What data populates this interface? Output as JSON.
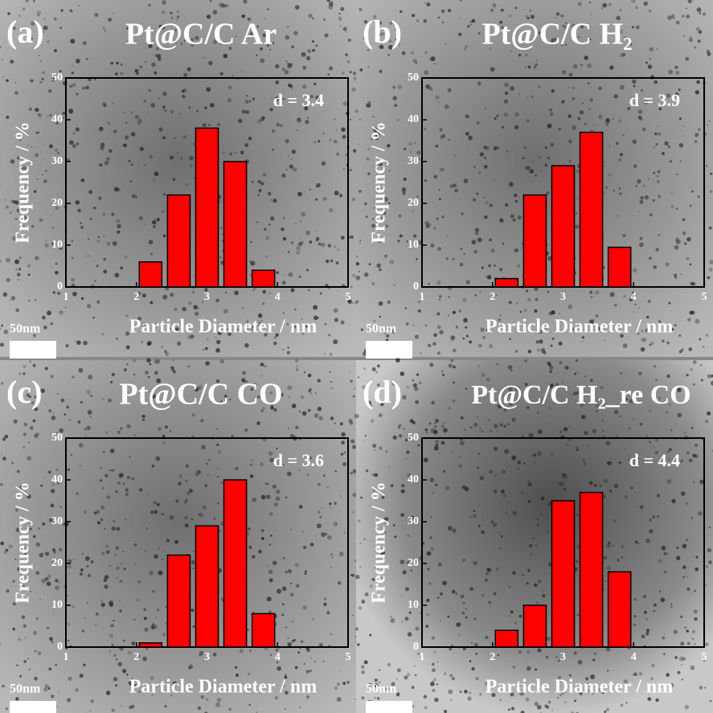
{
  "chart_data": [
    {
      "type": "bar",
      "panel_label": "(a)",
      "title": "Pt@C/C Ar",
      "annotation": "d = 3.4",
      "scale_bar": "50nm",
      "xlabel": "Particle Diameter / nm",
      "ylabel": "Frequency / %",
      "x": [
        2.2,
        2.6,
        3.0,
        3.4,
        3.8
      ],
      "values": [
        6,
        22,
        38,
        30,
        4
      ],
      "color": "#ff0000",
      "xlim": [
        1,
        5
      ],
      "ylim": [
        0,
        50
      ],
      "xticks": [
        1,
        2,
        3,
        4,
        5
      ],
      "yticks": [
        0,
        10,
        20,
        30,
        40,
        50
      ]
    },
    {
      "type": "bar",
      "panel_label": "(b)",
      "title": "Pt@C/C H₂",
      "annotation": "d = 3.9",
      "scale_bar": "50nm",
      "xlabel": "Particle Diameter / nm",
      "ylabel": "Frequency / %",
      "x": [
        2.2,
        2.6,
        3.0,
        3.4,
        3.8
      ],
      "values": [
        2,
        22,
        29,
        37,
        9.5
      ],
      "color": "#ff0000",
      "xlim": [
        1,
        5
      ],
      "ylim": [
        0,
        50
      ],
      "xticks": [
        1,
        2,
        3,
        4,
        5
      ],
      "yticks": [
        0,
        10,
        20,
        30,
        40,
        50
      ]
    },
    {
      "type": "bar",
      "panel_label": "(c)",
      "title": "Pt@C/C CO",
      "annotation": "d = 3.6",
      "scale_bar": "50nm",
      "xlabel": "Particle Diameter / nm",
      "ylabel": "Frequency / %",
      "x": [
        2.2,
        2.6,
        3.0,
        3.4,
        3.8
      ],
      "values": [
        1,
        22,
        29,
        40,
        8
      ],
      "color": "#ff0000",
      "xlim": [
        1,
        5
      ],
      "ylim": [
        0,
        50
      ],
      "xticks": [
        1,
        2,
        3,
        4,
        5
      ],
      "yticks": [
        0,
        10,
        20,
        30,
        40,
        50
      ]
    },
    {
      "type": "bar",
      "panel_label": "(d)",
      "title": "Pt@C/C H₂_re CO",
      "annotation": "d = 4.4",
      "scale_bar": "50nm",
      "xlabel": "Particle Diameter / nm",
      "ylabel": "Frequency / %",
      "x": [
        2.2,
        2.6,
        3.0,
        3.4,
        3.8
      ],
      "values": [
        4,
        10,
        35,
        37,
        18
      ],
      "color": "#ff0000",
      "xlim": [
        1,
        5
      ],
      "ylim": [
        0,
        50
      ],
      "xticks": [
        1,
        2,
        3,
        4,
        5
      ],
      "yticks": [
        0,
        10,
        20,
        30,
        40,
        50
      ]
    }
  ]
}
